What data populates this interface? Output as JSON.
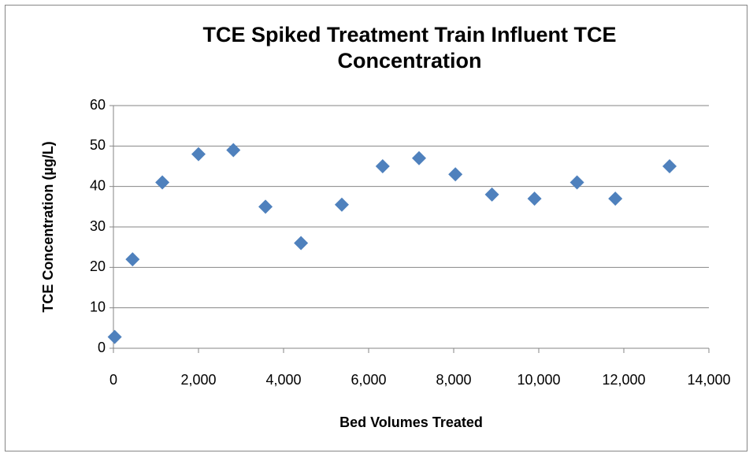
{
  "chart_data": {
    "type": "scatter",
    "title": "TCE Spiked Treatment Train Influent TCE Concentration",
    "x_label": "Bed Volumes Treated",
    "y_label": "TCE Concentration  (µg/L)",
    "x": [
      30,
      450,
      1150,
      2000,
      2820,
      3575,
      4410,
      5370,
      6330,
      7185,
      8040,
      8900,
      9900,
      10900,
      11800,
      13075
    ],
    "values": [
      2.8,
      22,
      41,
      48,
      49,
      35,
      26,
      35.5,
      45,
      47,
      43,
      38,
      37,
      41,
      37,
      45
    ],
    "color": "#4f81bd",
    "xlim": [
      0,
      14000
    ],
    "xticks": [
      0,
      {
        "value": 2000,
        "label": "2,000"
      },
      {
        "value": 4000,
        "label": "4,000"
      },
      {
        "value": 6000,
        "label": "6,000"
      },
      {
        "value": 8000,
        "label": "8,000"
      },
      {
        "value": 10000,
        "label": "10,000"
      },
      {
        "value": 12000,
        "label": "12,000"
      },
      {
        "value": 14000,
        "label": "14,000"
      }
    ],
    "ylim": [
      0,
      60
    ],
    "yticks": [
      0,
      10,
      20,
      30,
      40,
      50,
      60
    ],
    "grid": true
  }
}
